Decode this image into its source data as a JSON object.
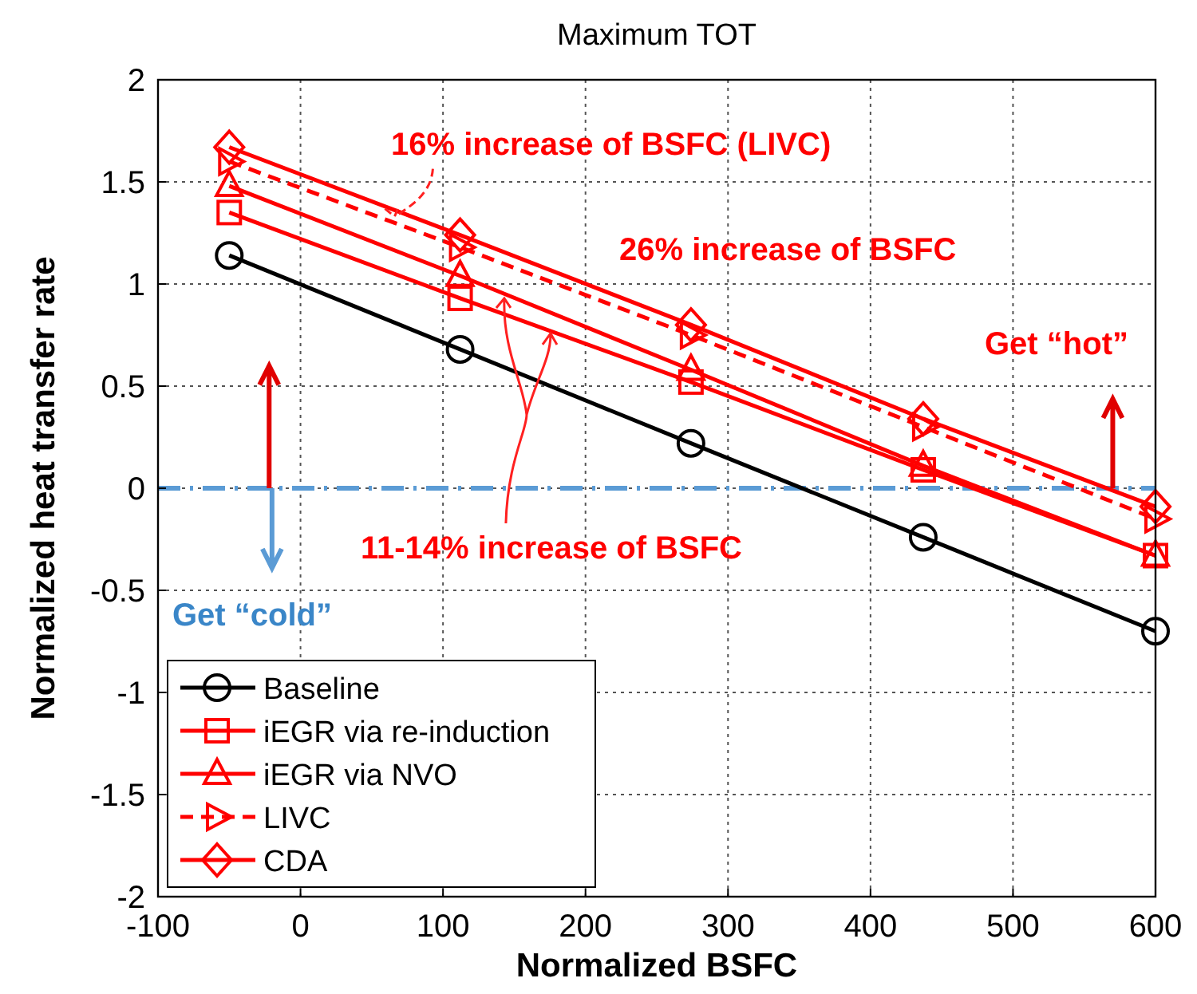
{
  "chart_data": {
    "type": "line",
    "title": "Maximum TOT",
    "xlabel": "Normalized BSFC",
    "ylabel": "Normalized heat transfer rate",
    "xlim": [
      -100,
      600
    ],
    "xticks": [
      -100,
      0,
      100,
      200,
      300,
      400,
      500,
      600
    ],
    "ylim": [
      -2,
      2
    ],
    "yticks": [
      -2,
      -1.5,
      -1,
      -0.5,
      0,
      0.5,
      1,
      1.5,
      2
    ],
    "x": [
      -50,
      112,
      274,
      437,
      600
    ],
    "grid": true,
    "legend": "bottom left",
    "series": [
      {
        "name": "Baseline",
        "color": "#000000",
        "marker": "circle",
        "line_style": "solid",
        "values": [
          1.14,
          0.68,
          0.22,
          -0.24,
          -0.7
        ]
      },
      {
        "name": "iEGR via re-induction",
        "color": "#ff0000",
        "marker": "square",
        "line_style": "solid",
        "values": [
          1.35,
          0.93,
          0.52,
          0.09,
          -0.33
        ]
      },
      {
        "name": "iEGR via NVO",
        "color": "#ff0000",
        "marker": "triangle",
        "line_style": "solid",
        "values": [
          1.48,
          1.04,
          0.58,
          0.11,
          -0.33
        ]
      },
      {
        "name": "LIVC",
        "color": "#ff0000",
        "marker": "triangle-right",
        "line_style": "dashed",
        "values": [
          1.6,
          1.18,
          0.75,
          0.3,
          -0.15
        ]
      },
      {
        "name": "CDA",
        "color": "#ff0000",
        "marker": "diamond",
        "line_style": "solid",
        "values": [
          1.67,
          1.24,
          0.8,
          0.34,
          -0.09
        ]
      }
    ],
    "ref_lines": [
      {
        "axis": "y",
        "value": 0,
        "color": "#5b9bd5",
        "line_style": "dashdot"
      }
    ],
    "annotations": [
      {
        "text": "16% increase of BSFC (LIVC)",
        "x": 66,
        "y": 1.33
      },
      "26% increase of BSFC",
      {
        "text": "11-14% increase of BSFC",
        "x": 143,
        "y": 0.93
      },
      {
        "text": "Get “hot”",
        "x": 570,
        "y": 0
      },
      {
        "text": "Get “cold”",
        "x": -20,
        "y": 0
      }
    ]
  }
}
